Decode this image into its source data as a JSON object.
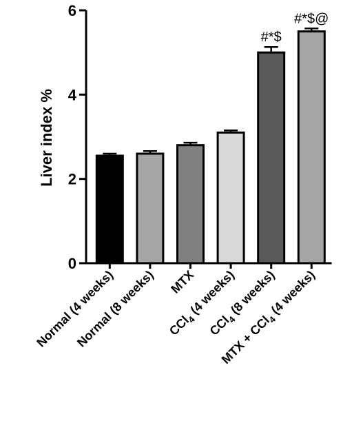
{
  "chart_data": {
    "type": "bar",
    "title": "",
    "xlabel": "",
    "ylabel": "Liver index %",
    "ylim": [
      0,
      6
    ],
    "yticks": [
      "0",
      "2",
      "4",
      "6"
    ],
    "grid": false,
    "legend": "none",
    "categories": [
      {
        "pre": "Normal (4 weeks)",
        "sub": "",
        "post": ""
      },
      {
        "pre": "Normal (8 weeks)",
        "sub": "",
        "post": ""
      },
      {
        "pre": "MTX",
        "sub": "",
        "post": ""
      },
      {
        "pre": "CCl",
        "sub": "4",
        "post": " (4 weeks)"
      },
      {
        "pre": "CCl",
        "sub": "4",
        "post": " (8 weeks)"
      },
      {
        "pre": "MTX + CCl",
        "sub": "4",
        "post": " (4 weeks)"
      }
    ],
    "values": [
      2.55,
      2.6,
      2.8,
      3.1,
      5.0,
      5.5
    ],
    "errors": [
      0.05,
      0.06,
      0.06,
      0.05,
      0.13,
      0.07
    ],
    "significance": [
      "",
      "",
      "",
      "",
      "#*$",
      "#*$@"
    ],
    "bar_colors": [
      "#000000",
      "#a6a6a6",
      "#7f7f7f",
      "#d9d9d9",
      "#595959",
      "#a6a6a6"
    ]
  }
}
